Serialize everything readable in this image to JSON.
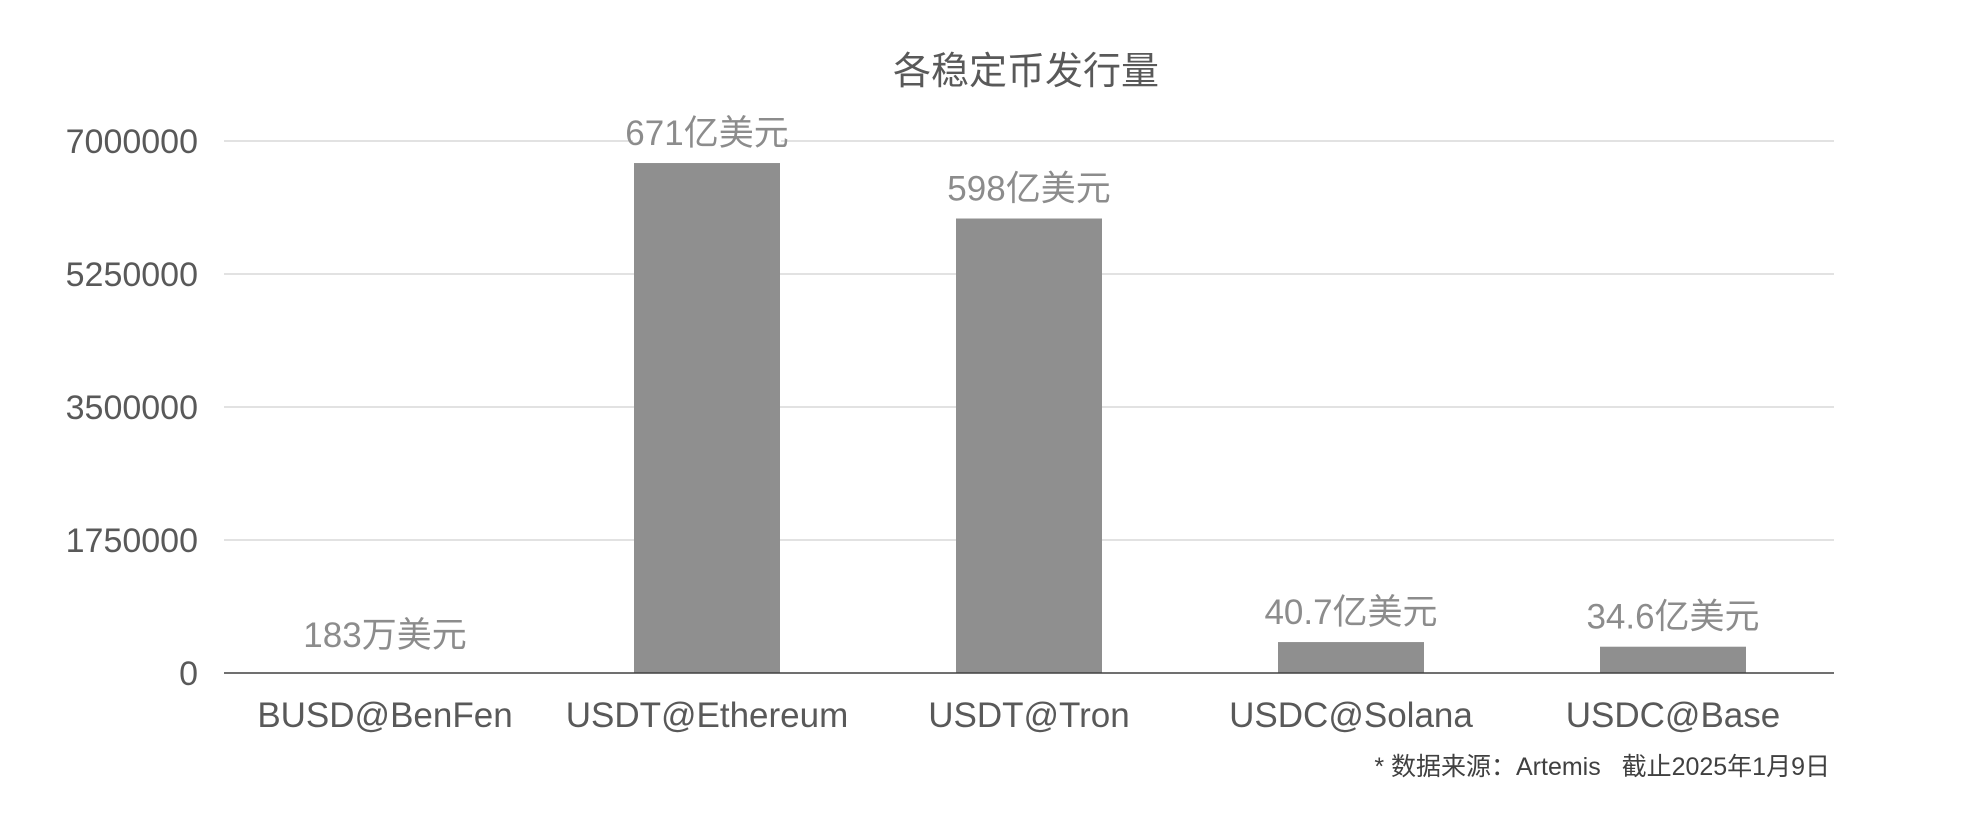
{
  "chart_data": {
    "type": "bar",
    "title": "各稳定币发行量",
    "categories": [
      "BUSD@BenFen",
      "USDT@Ethereum",
      "USDT@Tron",
      "USDC@Solana",
      "USDC@Base"
    ],
    "values": [
      183,
      6710000,
      5980000,
      407000,
      346000
    ],
    "data_labels": [
      "183万美元",
      "671亿美元",
      "598亿美元",
      "40.7亿美元",
      "34.6亿美元"
    ],
    "ylim": [
      0,
      7000000
    ],
    "yticks": [
      0,
      1750000,
      3500000,
      5250000,
      7000000
    ],
    "ytick_labels": [
      "0",
      "1750000",
      "3500000",
      "5250000",
      "7000000"
    ],
    "grid": true,
    "legend": "none",
    "colors": {
      "bar": "#8f8f8f",
      "grid": "#d9d9d9",
      "axis": "#404040",
      "label_bg": "#ffffff"
    }
  },
  "footnote": "* 数据来源：Artemis   截止2025年1月9日"
}
